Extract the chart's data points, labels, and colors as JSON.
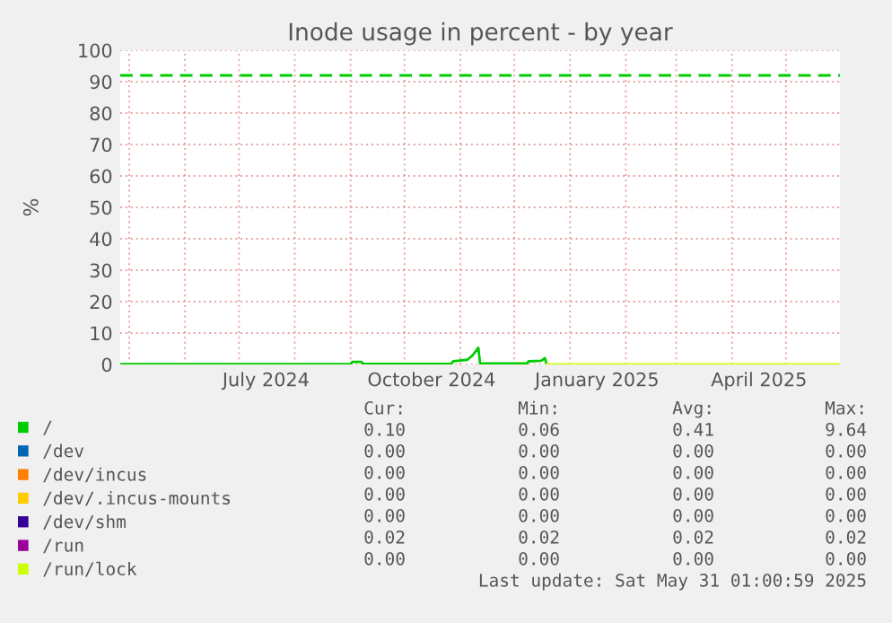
{
  "chart_data": {
    "type": "line",
    "title": "Inode usage in percent - by year",
    "ylabel": "%",
    "xlim": [
      "2024-04-26",
      "2025-05-31"
    ],
    "ylim": [
      0,
      100
    ],
    "yticks": [
      0,
      10,
      20,
      30,
      40,
      50,
      60,
      70,
      80,
      90,
      100
    ],
    "xticks": [
      {
        "value": "2024-05-01",
        "label": null
      },
      {
        "value": "2024-06-01",
        "label": null
      },
      {
        "value": "2024-07-01",
        "label": null
      },
      {
        "value": "2024-07-16",
        "label": "July 2024"
      },
      {
        "value": "2024-08-01",
        "label": null
      },
      {
        "value": "2024-09-01",
        "label": null
      },
      {
        "value": "2024-10-01",
        "label": null
      },
      {
        "value": "2024-10-16",
        "label": "October 2024"
      },
      {
        "value": "2024-11-01",
        "label": null
      },
      {
        "value": "2024-12-01",
        "label": null
      },
      {
        "value": "2025-01-01",
        "label": null
      },
      {
        "value": "2025-01-16",
        "label": "January 2025"
      },
      {
        "value": "2025-02-01",
        "label": null
      },
      {
        "value": "2025-03-01",
        "label": null
      },
      {
        "value": "2025-04-01",
        "label": null
      },
      {
        "value": "2025-04-16",
        "label": "April 2025"
      },
      {
        "value": "2025-05-01",
        "label": null
      }
    ],
    "grid": true,
    "legend": "bottom",
    "series": [
      {
        "name": "/",
        "color": "#00cc00",
        "x": [
          "2024-04-26",
          "2024-09-01",
          "2024-09-02",
          "2024-09-07",
          "2024-09-08",
          "2024-10-27",
          "2024-10-28",
          "2024-11-05",
          "2024-11-08",
          "2024-11-11",
          "2024-11-12",
          "2024-12-08",
          "2024-12-09",
          "2024-12-16",
          "2024-12-18",
          "2024-12-19"
        ],
        "values": [
          0.1,
          0.1,
          0.8,
          0.8,
          0.2,
          0.2,
          1.0,
          1.5,
          3.0,
          5.3,
          0.3,
          0.3,
          1.0,
          1.2,
          2.0,
          0.1
        ]
      },
      {
        "name": "/dev",
        "color": "#0066b3"
      },
      {
        "name": "/dev/incus",
        "color": "#ff8000"
      },
      {
        "name": "/dev/.incus-mounts",
        "color": "#ffcc00"
      },
      {
        "name": "/dev/shm",
        "color": "#330099"
      },
      {
        "name": "/run",
        "color": "#990099"
      },
      {
        "name": "/run/lock",
        "color": "#ccff00",
        "x": [
          "2024-12-19",
          "2025-05-31"
        ],
        "values": [
          0,
          0
        ]
      }
    ],
    "ref_lines": [
      {
        "axis": "y",
        "value": 92,
        "color": "#00cc00",
        "line_style": "dashed"
      }
    ],
    "annotations": [
      "Cur:",
      "Min:",
      "Avg:",
      "Max:",
      "0.10",
      "0.06",
      "0.41",
      "9.64",
      "0.00",
      "0.00",
      "0.00",
      "0.00",
      "0.00",
      "0.00",
      "0.00",
      "0.00",
      "0.00",
      "0.00",
      "0.00",
      "0.00",
      "0.00",
      "0.00",
      "0.00",
      "0.00",
      "0.02",
      "0.02",
      "0.02",
      "0.02",
      "0.00",
      "0.00",
      "0.00",
      "0.00",
      "Last update: Sat May 31 01:00:59 2025"
    ]
  }
}
